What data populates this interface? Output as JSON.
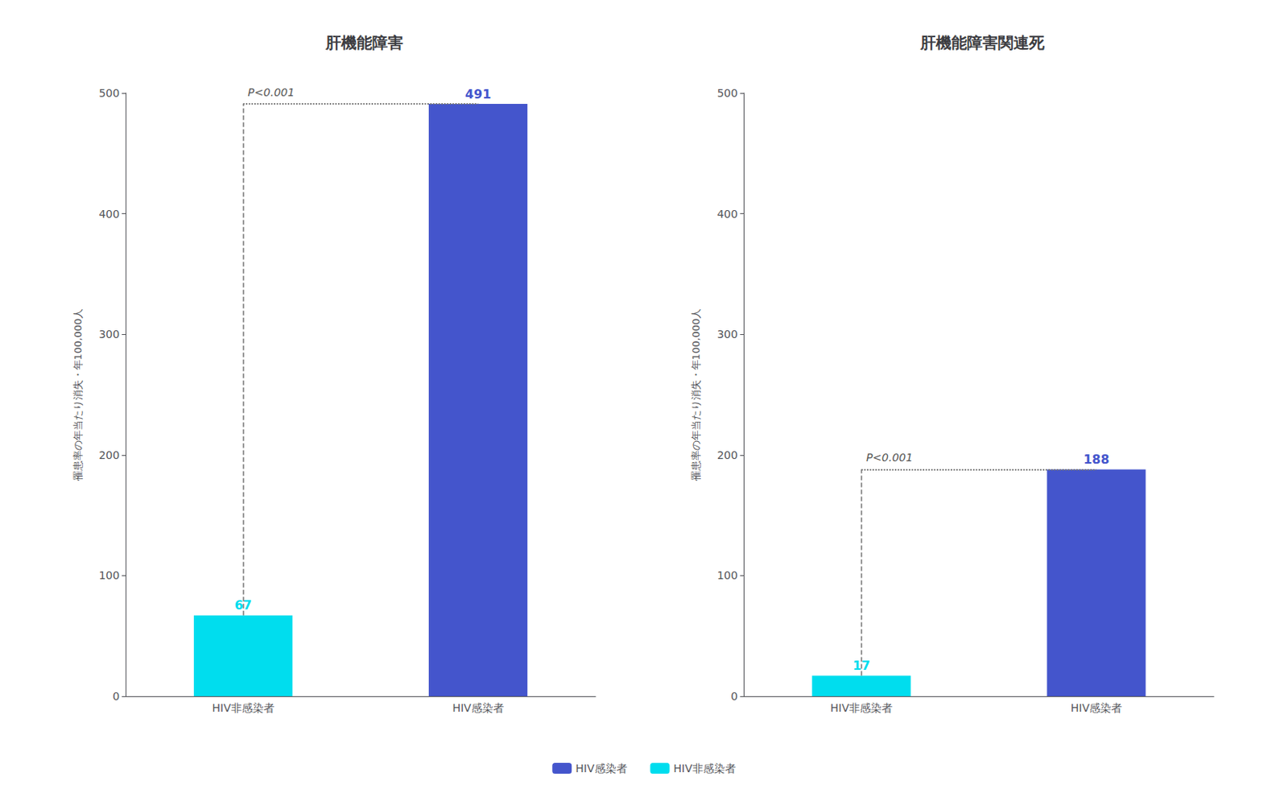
{
  "chart_data": [
    {
      "type": "bar",
      "title": "肝機能障害",
      "ylabel": "罹患率の年当たり消失・年100,000人",
      "categories": [
        "HIV非感染者",
        "HIV感染者"
      ],
      "series": [
        {
          "name": "HIV感染者",
          "color": "#4455CC",
          "values": [
            null,
            491
          ]
        },
        {
          "name": "HIV非感染者",
          "color": "#00DDEE",
          "values": [
            67,
            null
          ]
        }
      ],
      "ylim": [
        0,
        500
      ],
      "yticks": [
        0,
        100,
        200,
        300,
        400,
        500
      ],
      "data_labels": true,
      "annotation": "P<0.001",
      "grid": false,
      "legend": "bottom"
    },
    {
      "type": "bar",
      "title": "肝機能障害関連死",
      "ylabel": "罹患率の年当たり消失・年100,000人",
      "categories": [
        "HIV非感染者",
        "HIV感染者"
      ],
      "series": [
        {
          "name": "HIV感染者",
          "color": "#4455CC",
          "values": [
            null,
            188
          ]
        },
        {
          "name": "HIV非感染者",
          "color": "#00DDEE",
          "values": [
            17,
            null
          ]
        }
      ],
      "ylim": [
        0,
        500
      ],
      "yticks": [
        0,
        100,
        200,
        300,
        400,
        500
      ],
      "data_labels": true,
      "annotation": "P<0.001",
      "grid": false,
      "legend": "bottom"
    }
  ]
}
